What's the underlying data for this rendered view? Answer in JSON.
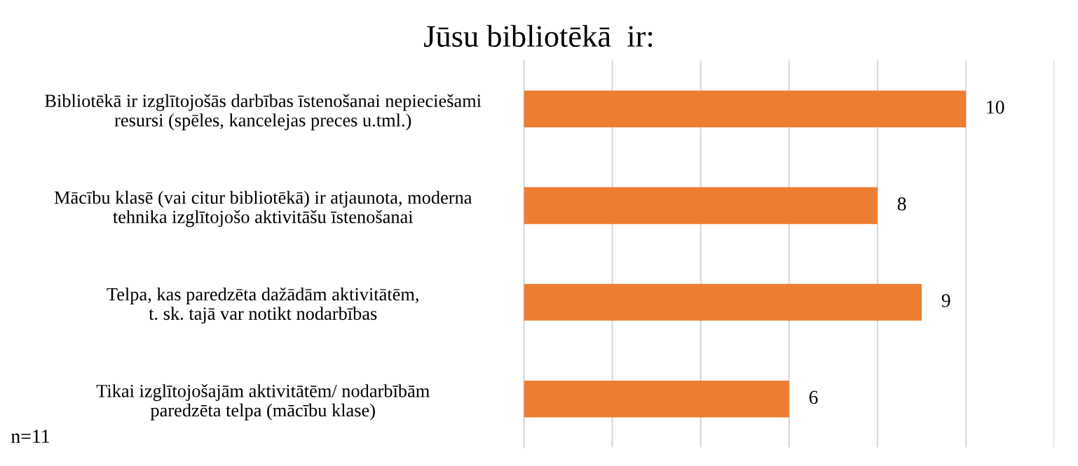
{
  "chart_data": {
    "type": "bar",
    "orientation": "horizontal",
    "title": "Jūsu bibliotēkā  ir:",
    "categories": [
      "Bibliotēkā ir izglītojošās darbības īstenošanai nepieciešami resursi (spēles, kancelejas preces u.tml.)",
      "Mācību klasē (vai citur bibliotēkā) ir atjaunota, moderna tehnika izglītojošo aktivitāšu īstenošanai",
      "Telpa, kas paredzēta dažādām aktivitātēm, t. sk. tajā var notikt nodarbības",
      "Tikai izglītojošajām aktivitātēm/ nodarbībām paredzēta telpa (mācību klase)"
    ],
    "values": [
      10,
      8,
      9,
      6
    ],
    "color": "#ed7d31",
    "xlim": [
      0,
      12
    ],
    "xticks": [
      0,
      2,
      4,
      6,
      8,
      10,
      12
    ],
    "tick_labels": "y",
    "grid": "x",
    "data_labels": true,
    "legend": false,
    "annotations": [
      "n=11"
    ]
  }
}
